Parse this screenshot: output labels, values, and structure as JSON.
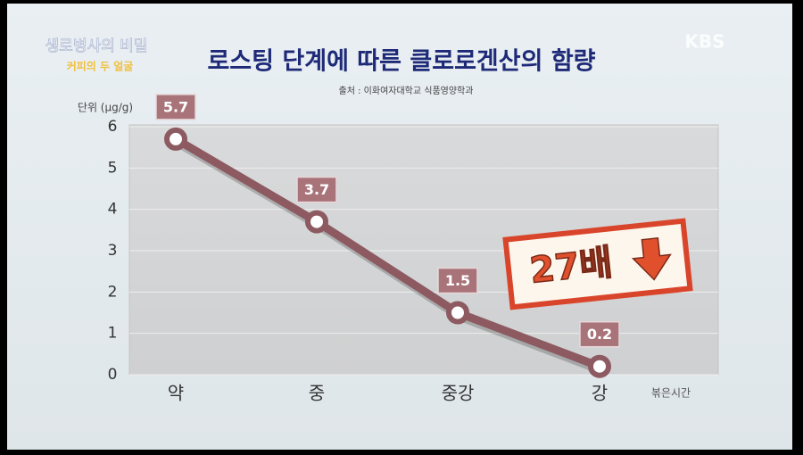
{
  "overlay": {
    "program": "생로병사의 비밀",
    "episode": "커피의 두 얼굴",
    "channel": "KBS"
  },
  "chart_data": {
    "type": "line",
    "title": "로스팅 단계에 따른 클로로겐산의 함량",
    "subtitle": "출처 : 이화여자대학교 식품영양학과",
    "y_label": "단위 (μg/g)",
    "x_label": "볶은시간",
    "annotation": "27배",
    "categories": [
      "약",
      "중",
      "중강",
      "강"
    ],
    "values": [
      5.7,
      3.7,
      1.5,
      0.2
    ],
    "color": "#8c5a60",
    "ylim": [
      0,
      6
    ],
    "yticks": [
      0,
      1,
      2,
      3,
      4,
      5,
      6
    ],
    "grid": true
  }
}
